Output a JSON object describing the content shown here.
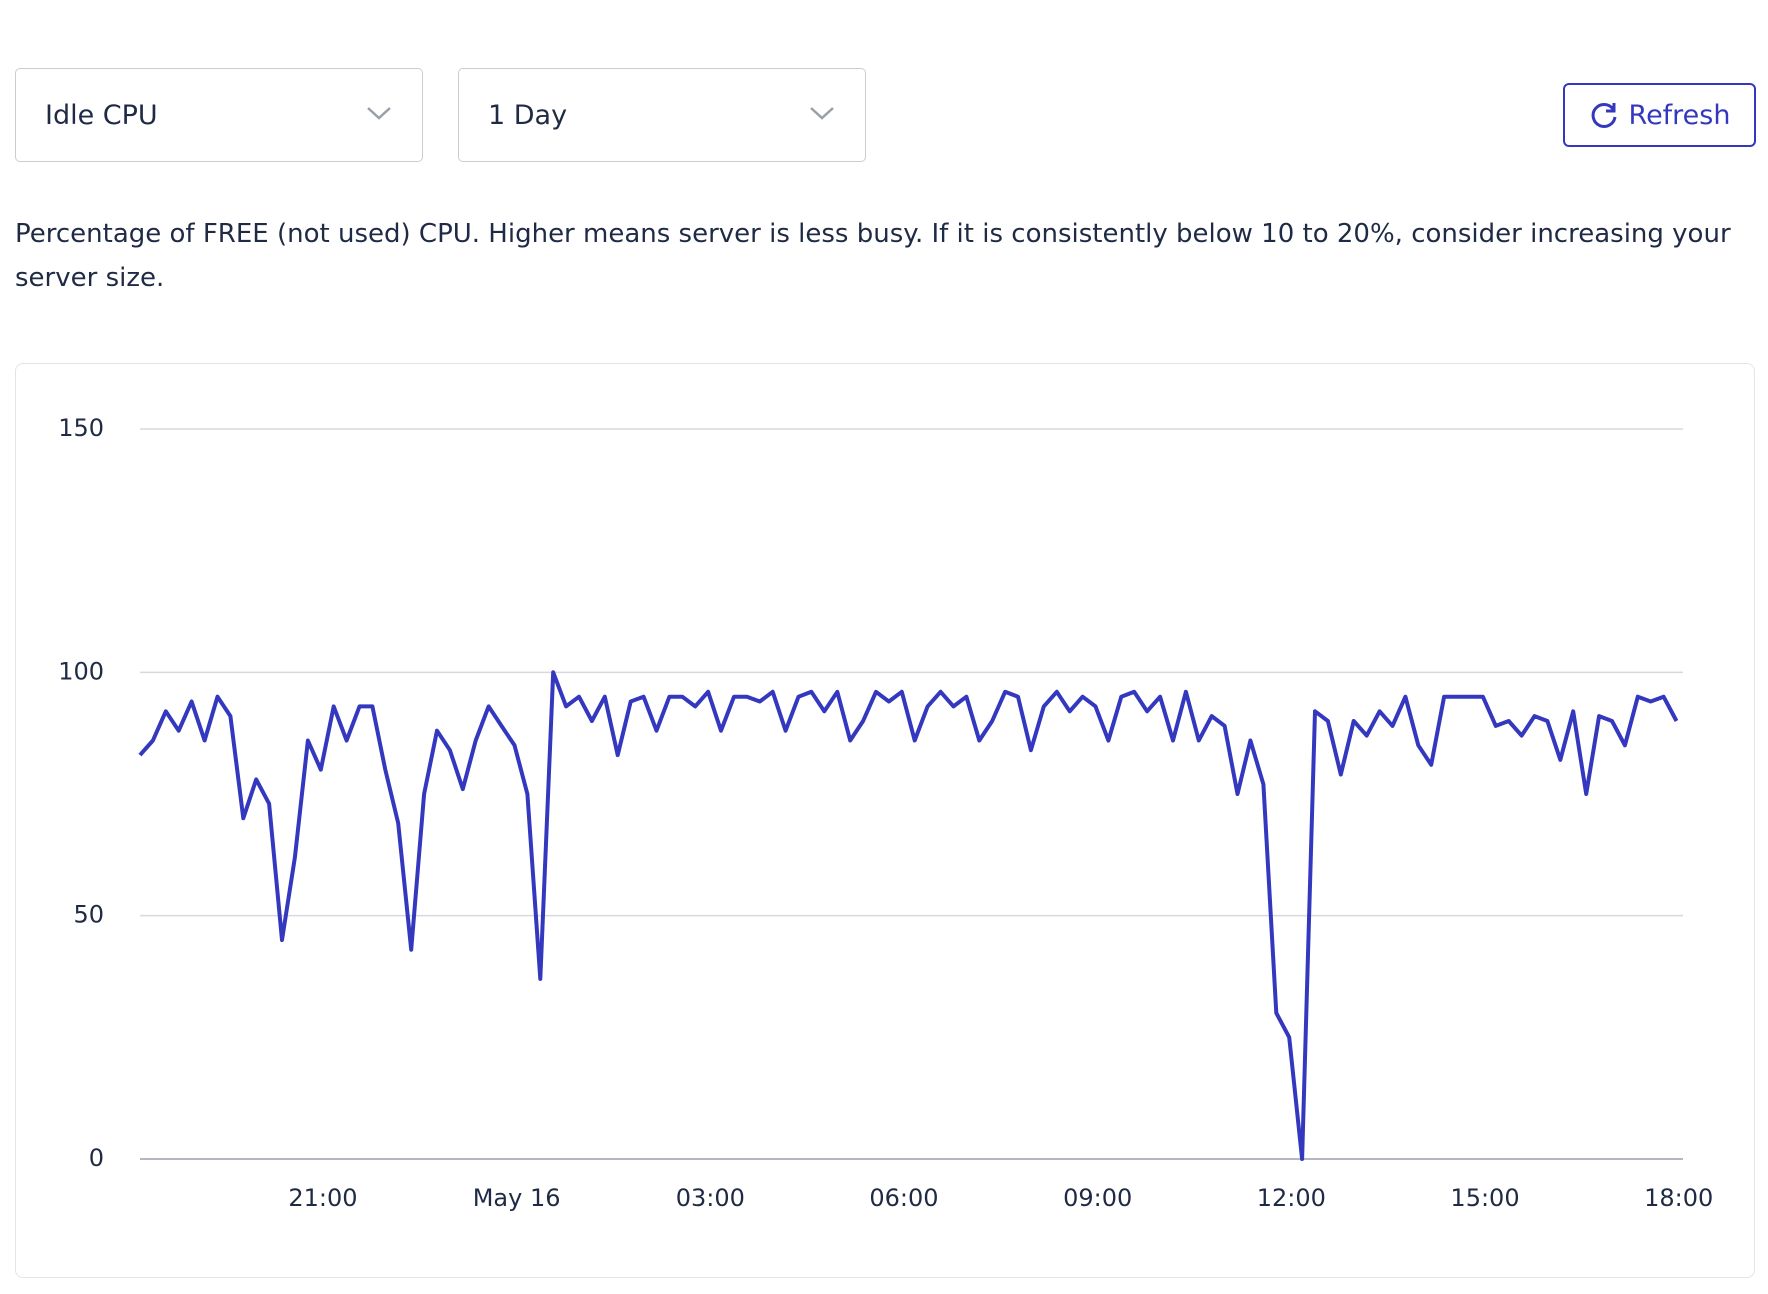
{
  "controls": {
    "metric": "Idle CPU",
    "range": "1 Day",
    "refresh": "Refresh"
  },
  "description": "Percentage of FREE (not used) CPU. Higher means server is less busy. If it is consistently below 10 to 20%, consider increasing your server size.",
  "chart_data": {
    "type": "line",
    "color": "#3338bf",
    "grid": true,
    "ylim": [
      0,
      150
    ],
    "yticks": [
      0,
      50,
      100,
      150
    ],
    "xlim": [
      "05-15T18:10",
      "05-16T18:04"
    ],
    "xticks": [
      {
        "value": "05-15T21:00",
        "label": "21:00"
      },
      {
        "value": "05-16T00:00",
        "label": "May 16"
      },
      {
        "value": "05-16T03:00",
        "label": "03:00"
      },
      {
        "value": "05-16T06:00",
        "label": "06:00"
      },
      {
        "value": "05-16T09:00",
        "label": "09:00"
      },
      {
        "value": "05-16T12:00",
        "label": "12:00"
      },
      {
        "value": "05-16T15:00",
        "label": "15:00"
      },
      {
        "value": "05-16T18:00",
        "label": "18:00"
      }
    ],
    "x": [
      "05-15T18:10",
      "05-15T18:22",
      "05-15T18:34",
      "05-15T18:46",
      "05-15T18:58",
      "05-15T19:10",
      "05-15T19:22",
      "05-15T19:34",
      "05-15T19:46",
      "05-15T19:58",
      "05-15T20:10",
      "05-15T20:22",
      "05-15T20:34",
      "05-15T20:46",
      "05-15T20:58",
      "05-15T21:10",
      "05-15T21:22",
      "05-15T21:34",
      "05-15T21:46",
      "05-15T21:58",
      "05-15T22:10",
      "05-15T22:22",
      "05-15T22:34",
      "05-15T22:46",
      "05-15T22:58",
      "05-15T23:10",
      "05-15T23:22",
      "05-15T23:34",
      "05-15T23:46",
      "05-15T23:58",
      "05-16T00:10",
      "05-16T00:22",
      "05-16T00:34",
      "05-16T00:46",
      "05-16T00:58",
      "05-16T01:10",
      "05-16T01:22",
      "05-16T01:34",
      "05-16T01:46",
      "05-16T01:58",
      "05-16T02:10",
      "05-16T02:22",
      "05-16T02:34",
      "05-16T02:46",
      "05-16T02:58",
      "05-16T03:10",
      "05-16T03:22",
      "05-16T03:34",
      "05-16T03:46",
      "05-16T03:58",
      "05-16T04:10",
      "05-16T04:22",
      "05-16T04:34",
      "05-16T04:46",
      "05-16T04:58",
      "05-16T05:10",
      "05-16T05:22",
      "05-16T05:34",
      "05-16T05:46",
      "05-16T05:58",
      "05-16T06:10",
      "05-16T06:22",
      "05-16T06:34",
      "05-16T06:46",
      "05-16T06:58",
      "05-16T07:10",
      "05-16T07:22",
      "05-16T07:34",
      "05-16T07:46",
      "05-16T07:58",
      "05-16T08:10",
      "05-16T08:22",
      "05-16T08:34",
      "05-16T08:46",
      "05-16T08:58",
      "05-16T09:10",
      "05-16T09:22",
      "05-16T09:34",
      "05-16T09:46",
      "05-16T09:58",
      "05-16T10:10",
      "05-16T10:22",
      "05-16T10:34",
      "05-16T10:46",
      "05-16T10:58",
      "05-16T11:10",
      "05-16T11:22",
      "05-16T11:34",
      "05-16T11:46",
      "05-16T11:58",
      "05-16T12:10",
      "05-16T12:22",
      "05-16T12:34",
      "05-16T12:46",
      "05-16T12:58",
      "05-16T13:10",
      "05-16T13:22",
      "05-16T13:34",
      "05-16T13:46",
      "05-16T13:58",
      "05-16T14:10",
      "05-16T14:22",
      "05-16T14:34",
      "05-16T14:46",
      "05-16T14:58",
      "05-16T15:10",
      "05-16T15:22",
      "05-16T15:34",
      "05-16T15:46",
      "05-16T15:58",
      "05-16T16:10",
      "05-16T16:22",
      "05-16T16:34",
      "05-16T16:46",
      "05-16T16:58",
      "05-16T17:10",
      "05-16T17:22",
      "05-16T17:34",
      "05-16T17:46",
      "05-16T17:58"
    ],
    "values": [
      83,
      86,
      92,
      88,
      94,
      86,
      95,
      91,
      70,
      78,
      73,
      45,
      62,
      86,
      80,
      93,
      86,
      93,
      93,
      80,
      69,
      43,
      75,
      88,
      84,
      76,
      86,
      93,
      89,
      85,
      75,
      37,
      100,
      93,
      95,
      90,
      95,
      83,
      94,
      95,
      88,
      95,
      95,
      93,
      96,
      88,
      95,
      95,
      94,
      96,
      88,
      95,
      96,
      92,
      96,
      86,
      90,
      96,
      94,
      96,
      86,
      93,
      96,
      93,
      95,
      86,
      90,
      96,
      95,
      84,
      93,
      96,
      92,
      95,
      93,
      86,
      95,
      96,
      92,
      95,
      86,
      96,
      86,
      91,
      89,
      75,
      86,
      77,
      30,
      25,
      0,
      92,
      90,
      79,
      90,
      87,
      92,
      89,
      95,
      85,
      81,
      95,
      95,
      95,
      95,
      89,
      90,
      87,
      91,
      90,
      82,
      92,
      75,
      91,
      90,
      85,
      95,
      94,
      95,
      90
    ]
  }
}
